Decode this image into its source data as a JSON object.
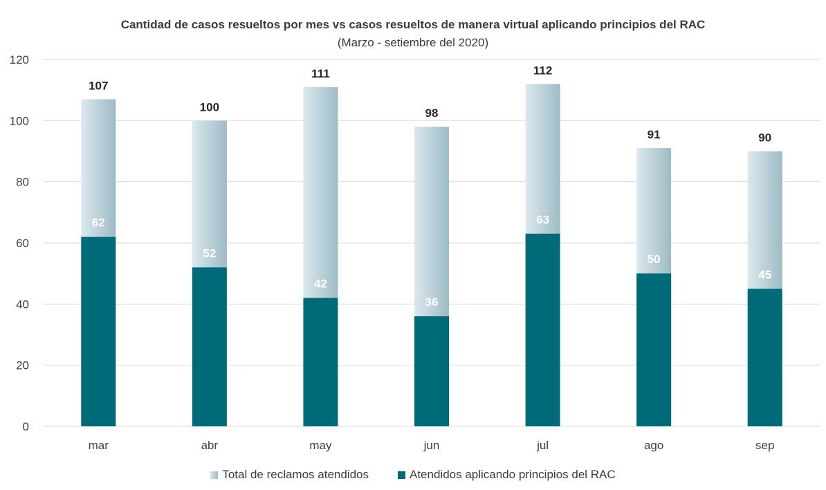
{
  "colors": {
    "total_light": "#dce8ee",
    "total_dark": "#9dbbc5",
    "rac": "#006b78",
    "grid": "#d9d9d9",
    "label_dark": "#262626",
    "label_light": "#ffffff"
  },
  "chart_data": {
    "type": "bar",
    "title": "Cantidad de casos resueltos por mes vs casos resueltos de manera virtual aplicando principios del RAC",
    "subtitle": "(Marzo - setiembre del 2020)",
    "categories": [
      "mar",
      "abr",
      "may",
      "jun",
      "jul",
      "ago",
      "sep"
    ],
    "series": [
      {
        "name": "Total de reclamos atendidos",
        "values": [
          107,
          100,
          111,
          98,
          112,
          91,
          90
        ]
      },
      {
        "name": "Atendidos aplicando principios del RAC",
        "values": [
          62,
          52,
          42,
          36,
          63,
          50,
          45
        ]
      }
    ],
    "ylim": [
      0,
      120
    ],
    "yticks": [
      0,
      20,
      40,
      60,
      80,
      100,
      120
    ],
    "grid": true,
    "legend": "bottom-center",
    "overlapping_bars": true
  }
}
